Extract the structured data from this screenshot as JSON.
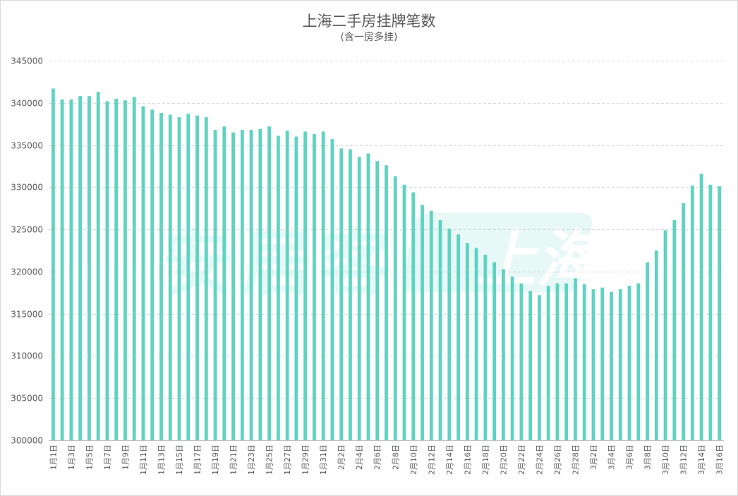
{
  "chart_data": {
    "type": "bar",
    "title": "上海二手房挂牌笔数",
    "subtitle": "(含一房多挂)",
    "xlabel": "",
    "ylabel": "",
    "ylim": [
      300000,
      345000
    ],
    "yticks": [
      300000,
      305000,
      310000,
      315000,
      320000,
      325000,
      330000,
      335000,
      340000,
      345000
    ],
    "grid": true,
    "legend": "none",
    "bar_color": "#5fd3c1",
    "categories": [
      "1月1日",
      "1月2日",
      "1月3日",
      "1月4日",
      "1月5日",
      "1月6日",
      "1月7日",
      "1月8日",
      "1月9日",
      "1月10日",
      "1月11日",
      "1月12日",
      "1月13日",
      "1月14日",
      "1月15日",
      "1月16日",
      "1月17日",
      "1月18日",
      "1月19日",
      "1月20日",
      "1月21日",
      "1月22日",
      "1月23日",
      "1月24日",
      "1月25日",
      "1月26日",
      "1月27日",
      "1月28日",
      "1月29日",
      "1月30日",
      "1月31日",
      "2月1日",
      "2月2日",
      "2月3日",
      "2月4日",
      "2月5日",
      "2月6日",
      "2月7日",
      "2月8日",
      "2月9日",
      "2月10日",
      "2月11日",
      "2月12日",
      "2月13日",
      "2月14日",
      "2月15日",
      "2月16日",
      "2月17日",
      "2月18日",
      "2月19日",
      "2月20日",
      "2月21日",
      "2月22日",
      "2月23日",
      "2月24日",
      "2月25日",
      "2月26日",
      "2月27日",
      "2月28日",
      "3月1日",
      "3月2日",
      "3月3日",
      "3月4日",
      "3月5日",
      "3月6日",
      "3月7日",
      "3月8日",
      "3月9日",
      "3月10日",
      "3月11日",
      "3月12日",
      "3月13日",
      "3月14日",
      "3月15日",
      "3月16日"
    ],
    "x_tick_labels": [
      "1月1日",
      "1月3日",
      "1月5日",
      "1月7日",
      "1月9日",
      "1月11日",
      "1月13日",
      "1月15日",
      "1月17日",
      "1月19日",
      "1月21日",
      "1月23日",
      "1月25日",
      "1月27日",
      "1月29日",
      "1月31日",
      "2月2日",
      "2月4日",
      "2月6日",
      "2月8日",
      "2月10日",
      "2月12日",
      "2月14日",
      "2月16日",
      "2月18日",
      "2月20日",
      "2月22日",
      "2月24日",
      "2月26日",
      "2月28日",
      "3月2日",
      "3月4日",
      "3月6日",
      "3月8日",
      "3月10日",
      "3月12日",
      "3月14日",
      "3月16日"
    ],
    "values": [
      341700,
      340400,
      340400,
      340800,
      340800,
      341300,
      340200,
      340500,
      340300,
      340700,
      339600,
      339200,
      338800,
      338600,
      338300,
      338700,
      338500,
      338300,
      336800,
      337200,
      336500,
      336800,
      336800,
      336900,
      337200,
      336100,
      336700,
      336000,
      336600,
      336300,
      336600,
      335700,
      334600,
      334500,
      333600,
      334000,
      333100,
      332600,
      331300,
      330300,
      329400,
      327900,
      327200,
      326100,
      325100,
      324400,
      323400,
      322800,
      322000,
      321100,
      320300,
      319400,
      318600,
      317700,
      317200,
      318300,
      318600,
      318600,
      319200,
      318500,
      317900,
      318100,
      317600,
      317900,
      318300,
      318600,
      321100,
      322500,
      324900,
      326100,
      328100,
      330200,
      331600,
      330300,
      330100
    ]
  },
  "watermark": {
    "text_left": "安居客",
    "text_right": "上海",
    "color": "#5fd3c1"
  }
}
